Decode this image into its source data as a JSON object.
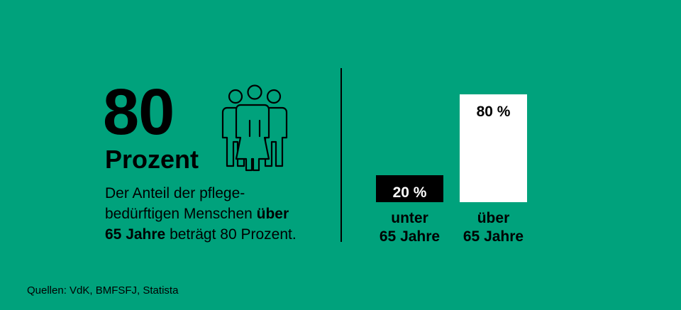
{
  "headline": {
    "value": "80",
    "unit": "Prozent",
    "description_1": "Der Anteil der pflege-",
    "description_2": "bedürftigen Menschen ",
    "description_2_bold": "über",
    "description_3_bold": "65 Jahre",
    "description_3": " beträgt 80 Prozent."
  },
  "icon": "group-of-people-icon",
  "colors": {
    "background": "#00a27c",
    "bar_under_65": "#000000",
    "bar_over_65": "#ffffff"
  },
  "chart_data": {
    "type": "bar",
    "categories": [
      "unter\n65 Jahre",
      "über\n65 Jahre"
    ],
    "values": [
      20,
      80
    ],
    "value_labels": [
      "20 %",
      "80 %"
    ],
    "ylim": [
      0,
      100
    ],
    "grid": false
  },
  "source": "Quellen: VdK, BMFSFJ, Statista"
}
